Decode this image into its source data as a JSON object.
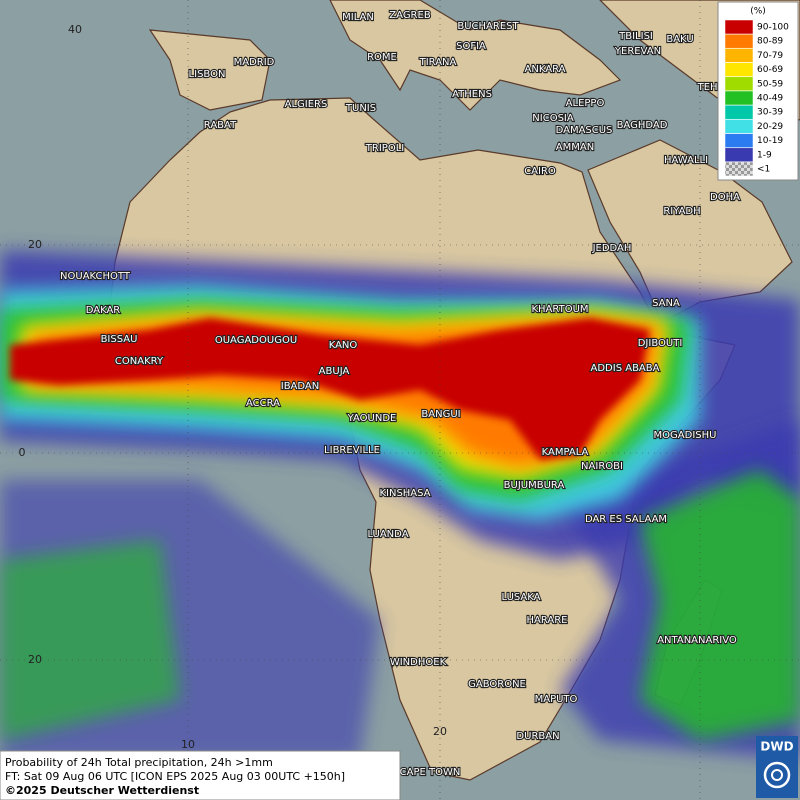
{
  "map": {
    "cities": [
      "MILAN",
      "ZAGREB",
      "BUCHAREST",
      "TBILISI",
      "BAKU",
      "YEREVAN",
      "MADRID",
      "ROME",
      "SOFIA",
      "TIRANA",
      "ANKARA",
      "TEHRAN",
      "LISBON",
      "ATHENS",
      "ALGIERS",
      "TUNIS",
      "ALEPPO",
      "RABAT",
      "NICOSIA",
      "BAGHDAD",
      "DAMASCUS",
      "AMMAN",
      "TRIPOLI",
      "HAWALLI",
      "CAIRO",
      "DOHA",
      "RIYADH",
      "JEDDAH",
      "NOUAKCHOTT",
      "DAKAR",
      "KHARTOUM",
      "SANA",
      "BISSAU",
      "OUAGADOUGOU",
      "KANO",
      "DJIBOUTI",
      "CONAKRY",
      "ABUJA",
      "ADDIS ABABA",
      "IBADAN",
      "ACCRA",
      "YAOUNDE",
      "BANGUI",
      "MOGADISHU",
      "LIBREVILLE",
      "KAMPALA",
      "NAIROBI",
      "BUJUMBURA",
      "KINSHASA",
      "DAR ES SALAAM",
      "LUANDA",
      "LUSAKA",
      "HARARE",
      "ANTANANARIVO",
      "WINDHOEK",
      "GABORONE",
      "MAPUTO",
      "DURBAN",
      "CAPE TOWN"
    ],
    "grid_labels": [
      "40",
      "20",
      "0",
      "20",
      "10",
      "20"
    ]
  },
  "legend": {
    "unit": "(%)",
    "items": [
      {
        "label": "90-100",
        "color": "#c80000"
      },
      {
        "label": "80-89",
        "color": "#ff7a00"
      },
      {
        "label": "70-79",
        "color": "#ffb400"
      },
      {
        "label": "60-69",
        "color": "#ffe600"
      },
      {
        "label": "50-59",
        "color": "#a0dc00"
      },
      {
        "label": "40-49",
        "color": "#22c022"
      },
      {
        "label": "30-39",
        "color": "#00c8a8"
      },
      {
        "label": "20-29",
        "color": "#40e0e6"
      },
      {
        "label": "10-19",
        "color": "#2a7cf0"
      },
      {
        "label": "1-9",
        "color": "#3a3ab0"
      },
      {
        "label": "<1",
        "color": "#b0b0b0"
      }
    ]
  },
  "footer": {
    "lines": [
      "Probability of 24h Total precipitation, 24h >1mm",
      "FT: Sat 09 Aug 06 UTC [ICON EPS 2025 Aug 03 00UTC +150h]",
      "©2025 Deutscher Wetterdienst"
    ]
  },
  "logo": "DWD"
}
